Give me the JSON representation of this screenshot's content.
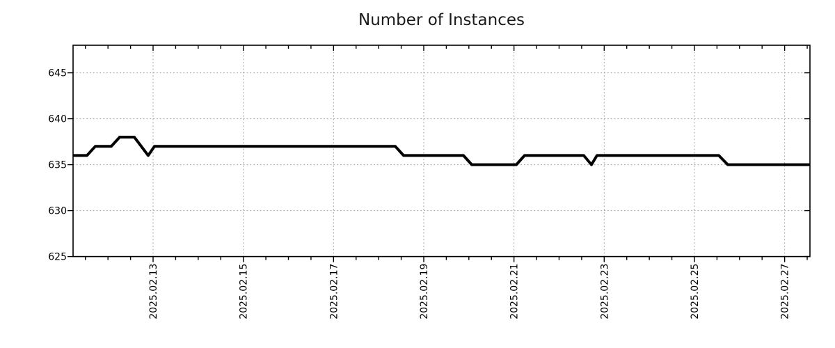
{
  "page": {
    "background": "#ffffff"
  },
  "chart_data": {
    "type": "line",
    "title": "Number of Instances",
    "title_color": "#1a1a1a",
    "grid_color": "#a0a0a0",
    "axis_color": "#000000",
    "legend": null,
    "xlabel": "",
    "ylabel": "",
    "grid": "dotted, major ticks only",
    "x_axis": {
      "unit": "days since 2025-02-11 00:00",
      "min": 0.226,
      "max": 16.561,
      "minor_tick_step": 0.5,
      "major_ticks": [
        {
          "t": 2,
          "label": "2025.02.13"
        },
        {
          "t": 4,
          "label": "2025.02.15"
        },
        {
          "t": 6,
          "label": "2025.02.17"
        },
        {
          "t": 8,
          "label": "2025.02.19"
        },
        {
          "t": 10,
          "label": "2025.02.21"
        },
        {
          "t": 12,
          "label": "2025.02.23"
        },
        {
          "t": 14,
          "label": "2025.02.25"
        },
        {
          "t": 16,
          "label": "2025.02.27"
        }
      ]
    },
    "y_axis": {
      "min": 625,
      "max": 648,
      "ticks": [
        625,
        630,
        635,
        640,
        645
      ]
    },
    "series": [
      {
        "name": "instances",
        "color": "#000000",
        "width": 4,
        "points_format": [
          "t_days_since_2025-02-11",
          "value",
          "approx_time"
        ],
        "points": [
          [
            0.226,
            636,
            "02-11 05:25"
          ],
          [
            0.535,
            636,
            "02-11 12:50"
          ],
          [
            0.72,
            637,
            "02-11 17:17"
          ],
          [
            1.075,
            637,
            "02-12 01:48"
          ],
          [
            1.26,
            638,
            "02-12 06:14"
          ],
          [
            1.584,
            638,
            "02-12 14:01"
          ],
          [
            1.892,
            636,
            "02-12 21:24"
          ],
          [
            2.031,
            637,
            "02-13 00:45"
          ],
          [
            7.368,
            637,
            "02-18 08:50"
          ],
          [
            7.553,
            636,
            "02-18 13:16"
          ],
          [
            8.879,
            636,
            "02-19 21:06"
          ],
          [
            9.064,
            635,
            "02-20 01:32"
          ],
          [
            10.051,
            635,
            "02-21 01:13"
          ],
          [
            10.236,
            636,
            "02-21 05:40"
          ],
          [
            11.547,
            636,
            "02-22 13:08"
          ],
          [
            11.717,
            635,
            "02-22 17:12"
          ],
          [
            11.84,
            636,
            "02-22 20:10"
          ],
          [
            14.54,
            636,
            "02-25 12:58"
          ],
          [
            14.74,
            635,
            "02-25 17:46"
          ],
          [
            16.561,
            635,
            "02-27 13:28"
          ]
        ]
      }
    ]
  }
}
